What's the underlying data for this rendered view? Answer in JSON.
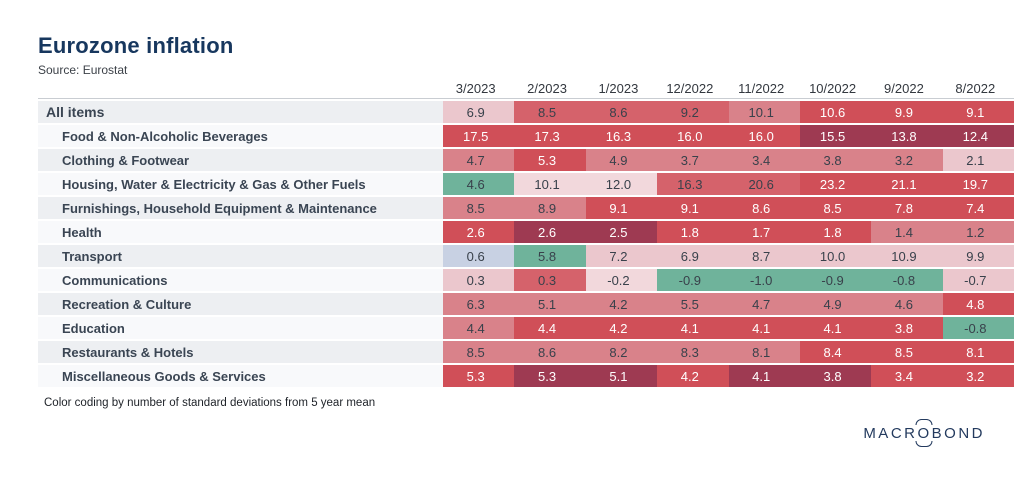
{
  "header": {
    "title": "Eurozone inflation",
    "source": "Source: Eurostat"
  },
  "footer": {
    "note": "Color coding by number of standard deviations from 5 year mean"
  },
  "logo": {
    "part1": "MACR",
    "o": "O",
    "part2": "BOND"
  },
  "palette": {
    "title_color": "#17375E",
    "label_color": "#3A4553",
    "stripe_odd": "#EDEFF2",
    "stripe_even": "#F8F9FB",
    "bins": {
      "green": {
        "bg": "#6FB39B",
        "fg": "#39414B"
      },
      "blue": {
        "bg": "#C8D1E3",
        "fg": "#39414B"
      },
      "pale": {
        "bg": "#F2D8DC",
        "fg": "#39414B"
      },
      "light": {
        "bg": "#EBC7CD",
        "fg": "#39414B"
      },
      "rose": {
        "bg": "#D9828A",
        "fg": "#39414B"
      },
      "medium": {
        "bg": "#D5626B",
        "fg": "#39414B"
      },
      "red": {
        "bg": "#D04F58",
        "fg": "#FFFFFF"
      },
      "maroon": {
        "bg": "#9E3A52",
        "fg": "#FFFFFF"
      }
    }
  },
  "chart_data": {
    "type": "heatmap",
    "title": "Eurozone inflation",
    "source": "Eurostat",
    "note": "Color coding by number of standard deviations from 5 year mean",
    "columns": [
      "3/2023",
      "2/2023",
      "1/2023",
      "12/2022",
      "11/2022",
      "10/2022",
      "9/2022",
      "8/2022"
    ],
    "rows": [
      {
        "label": "All items",
        "indent": 0,
        "values": [
          6.9,
          8.5,
          8.6,
          9.2,
          10.1,
          10.6,
          9.9,
          9.1
        ],
        "colors": [
          "light",
          "medium",
          "medium",
          "medium",
          "rose",
          "red",
          "red",
          "red"
        ]
      },
      {
        "label": "Food & Non-Alcoholic Beverages",
        "indent": 1,
        "values": [
          17.5,
          17.3,
          16.3,
          16.0,
          16.0,
          15.5,
          13.8,
          12.4
        ],
        "colors": [
          "red",
          "red",
          "red",
          "red",
          "red",
          "maroon",
          "maroon",
          "maroon"
        ]
      },
      {
        "label": "Clothing & Footwear",
        "indent": 1,
        "values": [
          4.7,
          5.3,
          4.9,
          3.7,
          3.4,
          3.8,
          3.2,
          2.1
        ],
        "colors": [
          "rose",
          "red",
          "rose",
          "rose",
          "rose",
          "rose",
          "rose",
          "light"
        ]
      },
      {
        "label": "Housing, Water & Electricity & Gas & Other Fuels",
        "indent": 1,
        "values": [
          4.6,
          10.1,
          12.0,
          16.3,
          20.6,
          23.2,
          21.1,
          19.7
        ],
        "colors": [
          "green",
          "pale",
          "pale",
          "medium",
          "medium",
          "red",
          "red",
          "red"
        ]
      },
      {
        "label": "Furnishings, Household Equipment & Maintenance",
        "indent": 1,
        "values": [
          8.5,
          8.9,
          9.1,
          9.1,
          8.6,
          8.5,
          7.8,
          7.4
        ],
        "colors": [
          "rose",
          "rose",
          "red",
          "red",
          "red",
          "red",
          "red",
          "red"
        ]
      },
      {
        "label": "Health",
        "indent": 1,
        "values": [
          2.6,
          2.6,
          2.5,
          1.8,
          1.7,
          1.8,
          1.4,
          1.2
        ],
        "colors": [
          "red",
          "maroon",
          "maroon",
          "red",
          "red",
          "red",
          "rose",
          "rose"
        ]
      },
      {
        "label": "Transport",
        "indent": 1,
        "values": [
          0.6,
          5.8,
          7.2,
          6.9,
          8.7,
          10.0,
          10.9,
          9.9
        ],
        "colors": [
          "blue",
          "green",
          "light",
          "light",
          "light",
          "light",
          "light",
          "light"
        ]
      },
      {
        "label": "Communications",
        "indent": 1,
        "values": [
          0.3,
          0.3,
          -0.2,
          -0.9,
          -1.0,
          -0.9,
          -0.8,
          -0.7
        ],
        "colors": [
          "light",
          "medium",
          "pale",
          "green",
          "green",
          "green",
          "green",
          "light"
        ]
      },
      {
        "label": "Recreation & Culture",
        "indent": 1,
        "values": [
          6.3,
          5.1,
          4.2,
          5.5,
          4.7,
          4.9,
          4.6,
          4.8
        ],
        "colors": [
          "rose",
          "rose",
          "rose",
          "rose",
          "rose",
          "rose",
          "rose",
          "red"
        ]
      },
      {
        "label": "Education",
        "indent": 1,
        "values": [
          4.4,
          4.4,
          4.2,
          4.1,
          4.1,
          4.1,
          3.8,
          -0.8
        ],
        "colors": [
          "rose",
          "red",
          "red",
          "red",
          "red",
          "red",
          "red",
          "green"
        ]
      },
      {
        "label": "Restaurants & Hotels",
        "indent": 1,
        "values": [
          8.5,
          8.6,
          8.2,
          8.3,
          8.1,
          8.4,
          8.5,
          8.1
        ],
        "colors": [
          "rose",
          "rose",
          "rose",
          "rose",
          "rose",
          "red",
          "red",
          "red"
        ]
      },
      {
        "label": "Miscellaneous Goods & Services",
        "indent": 1,
        "values": [
          5.3,
          5.3,
          5.1,
          4.2,
          4.1,
          3.8,
          3.4,
          3.2
        ],
        "colors": [
          "red",
          "maroon",
          "maroon",
          "red",
          "maroon",
          "maroon",
          "red",
          "red"
        ]
      }
    ]
  }
}
